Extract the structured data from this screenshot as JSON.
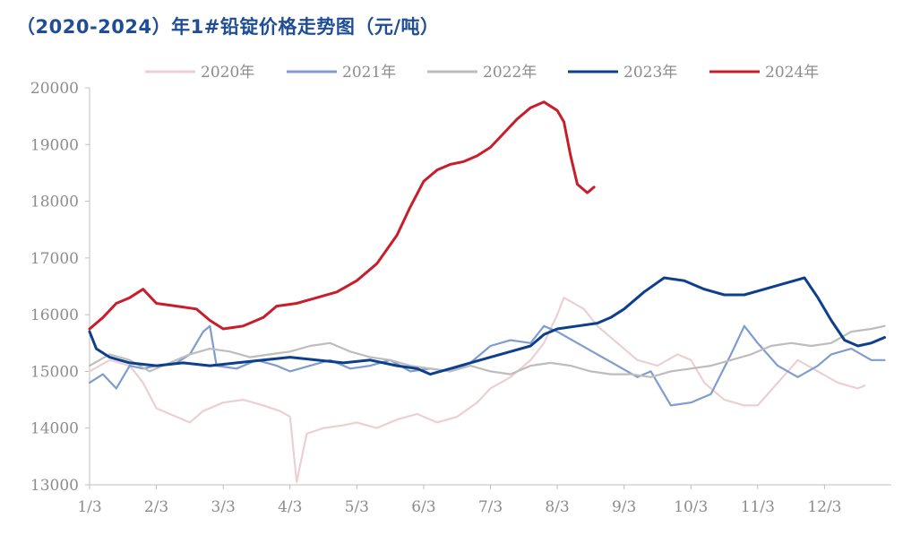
{
  "title": "（2020-2024）年1#铅锭价格走势图（元/吨）",
  "chart_data": {
    "type": "line",
    "title": "（2020-2024）年1#铅锭价格走势图（元/吨）",
    "xlabel": "",
    "ylabel": "",
    "x_ticks": [
      "1/3",
      "2/3",
      "3/3",
      "4/3",
      "5/3",
      "6/3",
      "7/3",
      "8/3",
      "9/3",
      "10/3",
      "11/3",
      "12/3"
    ],
    "xlim": [
      1,
      13
    ],
    "ylim": [
      13000,
      20000
    ],
    "y_ticks": [
      13000,
      14000,
      15000,
      16000,
      17000,
      18000,
      19000,
      20000
    ],
    "legend_position": "top",
    "series": [
      {
        "name": "2020年",
        "color": "#eccfd3",
        "points": [
          [
            1.0,
            15000
          ],
          [
            1.3,
            15200
          ],
          [
            1.6,
            15100
          ],
          [
            1.8,
            14800
          ],
          [
            2.0,
            14350
          ],
          [
            2.3,
            14200
          ],
          [
            2.5,
            14100
          ],
          [
            2.7,
            14300
          ],
          [
            3.0,
            14450
          ],
          [
            3.3,
            14500
          ],
          [
            3.6,
            14400
          ],
          [
            3.85,
            14300
          ],
          [
            4.0,
            14200
          ],
          [
            4.1,
            13050
          ],
          [
            4.25,
            13900
          ],
          [
            4.5,
            14000
          ],
          [
            4.8,
            14050
          ],
          [
            5.0,
            14100
          ],
          [
            5.3,
            14000
          ],
          [
            5.6,
            14150
          ],
          [
            5.9,
            14250
          ],
          [
            6.2,
            14100
          ],
          [
            6.5,
            14200
          ],
          [
            6.8,
            14450
          ],
          [
            7.0,
            14700
          ],
          [
            7.3,
            14900
          ],
          [
            7.6,
            15200
          ],
          [
            7.8,
            15500
          ],
          [
            8.0,
            16000
          ],
          [
            8.1,
            16300
          ],
          [
            8.4,
            16100
          ],
          [
            8.6,
            15800
          ],
          [
            8.9,
            15500
          ],
          [
            9.2,
            15200
          ],
          [
            9.5,
            15100
          ],
          [
            9.8,
            15300
          ],
          [
            10.0,
            15200
          ],
          [
            10.2,
            14800
          ],
          [
            10.5,
            14500
          ],
          [
            10.8,
            14400
          ],
          [
            11.0,
            14400
          ],
          [
            11.3,
            14800
          ],
          [
            11.6,
            15200
          ],
          [
            11.9,
            15000
          ],
          [
            12.2,
            14800
          ],
          [
            12.5,
            14700
          ],
          [
            12.6,
            14750
          ]
        ]
      },
      {
        "name": "2021年",
        "color": "#7f9ccd",
        "points": [
          [
            1.0,
            14800
          ],
          [
            1.2,
            14950
          ],
          [
            1.4,
            14700
          ],
          [
            1.6,
            15100
          ],
          [
            1.8,
            15050
          ],
          [
            2.0,
            15100
          ],
          [
            2.3,
            15150
          ],
          [
            2.5,
            15300
          ],
          [
            2.7,
            15700
          ],
          [
            2.8,
            15800
          ],
          [
            2.9,
            15100
          ],
          [
            3.2,
            15050
          ],
          [
            3.5,
            15200
          ],
          [
            3.8,
            15100
          ],
          [
            4.0,
            15000
          ],
          [
            4.3,
            15100
          ],
          [
            4.6,
            15200
          ],
          [
            4.9,
            15050
          ],
          [
            5.2,
            15100
          ],
          [
            5.5,
            15200
          ],
          [
            5.8,
            15000
          ],
          [
            6.1,
            15050
          ],
          [
            6.4,
            15000
          ],
          [
            6.7,
            15150
          ],
          [
            7.0,
            15450
          ],
          [
            7.3,
            15550
          ],
          [
            7.6,
            15500
          ],
          [
            7.8,
            15800
          ],
          [
            8.0,
            15700
          ],
          [
            8.3,
            15500
          ],
          [
            8.6,
            15300
          ],
          [
            8.9,
            15100
          ],
          [
            9.2,
            14900
          ],
          [
            9.4,
            15000
          ],
          [
            9.7,
            14400
          ],
          [
            10.0,
            14450
          ],
          [
            10.3,
            14600
          ],
          [
            10.6,
            15300
          ],
          [
            10.8,
            15800
          ],
          [
            11.0,
            15500
          ],
          [
            11.3,
            15100
          ],
          [
            11.6,
            14900
          ],
          [
            11.9,
            15100
          ],
          [
            12.1,
            15300
          ],
          [
            12.4,
            15400
          ],
          [
            12.7,
            15200
          ],
          [
            12.9,
            15200
          ]
        ]
      },
      {
        "name": "2022年",
        "color": "#bdbdbd",
        "points": [
          [
            1.0,
            15100
          ],
          [
            1.3,
            15300
          ],
          [
            1.6,
            15200
          ],
          [
            1.9,
            15000
          ],
          [
            2.2,
            15150
          ],
          [
            2.5,
            15300
          ],
          [
            2.8,
            15400
          ],
          [
            3.1,
            15350
          ],
          [
            3.4,
            15250
          ],
          [
            3.7,
            15300
          ],
          [
            4.0,
            15350
          ],
          [
            4.3,
            15450
          ],
          [
            4.6,
            15500
          ],
          [
            4.9,
            15350
          ],
          [
            5.2,
            15250
          ],
          [
            5.5,
            15200
          ],
          [
            5.8,
            15100
          ],
          [
            6.1,
            15050
          ],
          [
            6.4,
            15000
          ],
          [
            6.7,
            15100
          ],
          [
            7.0,
            15000
          ],
          [
            7.3,
            14950
          ],
          [
            7.6,
            15100
          ],
          [
            7.9,
            15150
          ],
          [
            8.2,
            15100
          ],
          [
            8.5,
            15000
          ],
          [
            8.8,
            14950
          ],
          [
            9.1,
            14950
          ],
          [
            9.4,
            14900
          ],
          [
            9.7,
            15000
          ],
          [
            10.0,
            15050
          ],
          [
            10.3,
            15100
          ],
          [
            10.6,
            15200
          ],
          [
            10.9,
            15300
          ],
          [
            11.2,
            15450
          ],
          [
            11.5,
            15500
          ],
          [
            11.8,
            15450
          ],
          [
            12.1,
            15500
          ],
          [
            12.4,
            15700
          ],
          [
            12.7,
            15750
          ],
          [
            12.9,
            15800
          ]
        ]
      },
      {
        "name": "2023年",
        "color": "#0d3f8c",
        "points": [
          [
            1.0,
            15700
          ],
          [
            1.1,
            15400
          ],
          [
            1.3,
            15250
          ],
          [
            1.6,
            15150
          ],
          [
            2.0,
            15100
          ],
          [
            2.4,
            15150
          ],
          [
            2.8,
            15100
          ],
          [
            3.2,
            15150
          ],
          [
            3.6,
            15200
          ],
          [
            4.0,
            15250
          ],
          [
            4.4,
            15200
          ],
          [
            4.8,
            15150
          ],
          [
            5.2,
            15200
          ],
          [
            5.6,
            15100
          ],
          [
            5.9,
            15050
          ],
          [
            6.1,
            14950
          ],
          [
            6.4,
            15050
          ],
          [
            6.7,
            15150
          ],
          [
            7.0,
            15250
          ],
          [
            7.3,
            15350
          ],
          [
            7.6,
            15450
          ],
          [
            7.8,
            15650
          ],
          [
            8.0,
            15750
          ],
          [
            8.3,
            15800
          ],
          [
            8.6,
            15850
          ],
          [
            8.8,
            15950
          ],
          [
            9.0,
            16100
          ],
          [
            9.3,
            16400
          ],
          [
            9.6,
            16650
          ],
          [
            9.9,
            16600
          ],
          [
            10.2,
            16450
          ],
          [
            10.5,
            16350
          ],
          [
            10.8,
            16350
          ],
          [
            11.1,
            16450
          ],
          [
            11.4,
            16550
          ],
          [
            11.7,
            16650
          ],
          [
            11.9,
            16300
          ],
          [
            12.1,
            15900
          ],
          [
            12.3,
            15550
          ],
          [
            12.5,
            15450
          ],
          [
            12.7,
            15500
          ],
          [
            12.9,
            15600
          ]
        ]
      },
      {
        "name": "2024年",
        "color": "#c81e2c",
        "points": [
          [
            1.0,
            15750
          ],
          [
            1.2,
            15950
          ],
          [
            1.4,
            16200
          ],
          [
            1.6,
            16300
          ],
          [
            1.8,
            16450
          ],
          [
            2.0,
            16200
          ],
          [
            2.3,
            16150
          ],
          [
            2.6,
            16100
          ],
          [
            2.8,
            15900
          ],
          [
            3.0,
            15750
          ],
          [
            3.3,
            15800
          ],
          [
            3.6,
            15950
          ],
          [
            3.8,
            16150
          ],
          [
            4.1,
            16200
          ],
          [
            4.4,
            16300
          ],
          [
            4.7,
            16400
          ],
          [
            5.0,
            16600
          ],
          [
            5.3,
            16900
          ],
          [
            5.6,
            17400
          ],
          [
            5.8,
            17900
          ],
          [
            6.0,
            18350
          ],
          [
            6.2,
            18550
          ],
          [
            6.4,
            18650
          ],
          [
            6.6,
            18700
          ],
          [
            6.8,
            18800
          ],
          [
            7.0,
            18950
          ],
          [
            7.2,
            19200
          ],
          [
            7.4,
            19450
          ],
          [
            7.6,
            19650
          ],
          [
            7.8,
            19750
          ],
          [
            8.0,
            19600
          ],
          [
            8.1,
            19400
          ],
          [
            8.2,
            18800
          ],
          [
            8.3,
            18300
          ],
          [
            8.45,
            18150
          ],
          [
            8.55,
            18250
          ]
        ]
      }
    ]
  }
}
